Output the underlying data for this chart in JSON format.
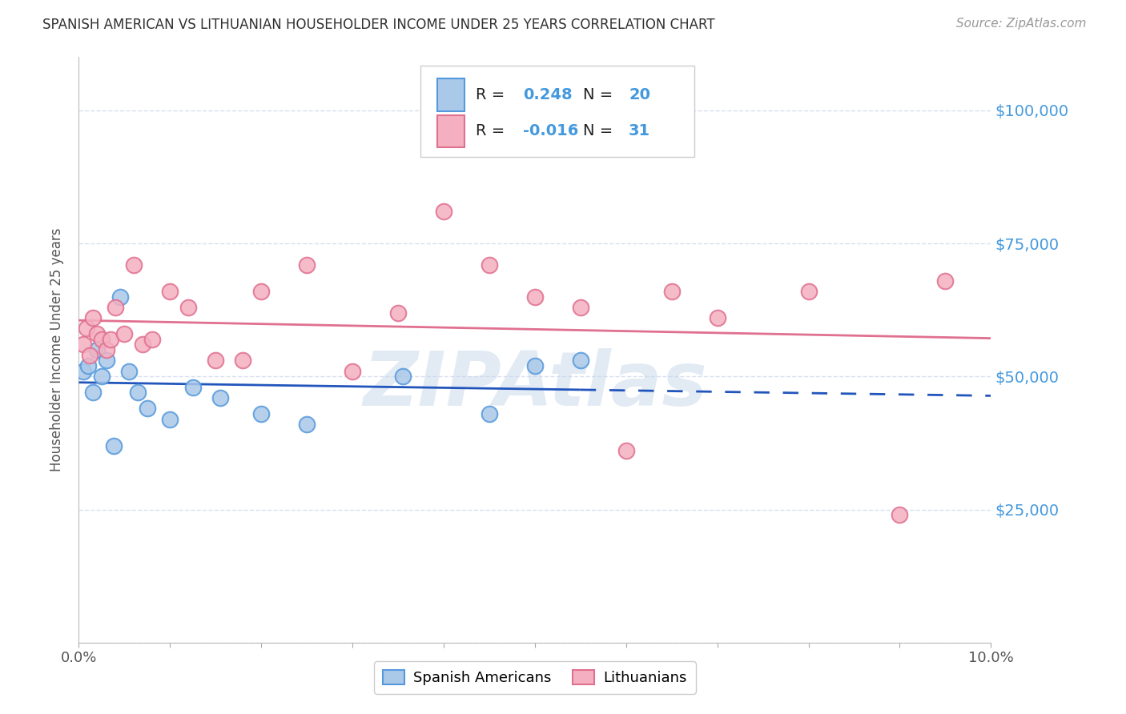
{
  "title": "SPANISH AMERICAN VS LITHUANIAN HOUSEHOLDER INCOME UNDER 25 YEARS CORRELATION CHART",
  "source": "Source: ZipAtlas.com",
  "ylabel": "Householder Income Under 25 years",
  "watermark": "ZIPAtlas",
  "xmin": 0.0,
  "xmax": 10.0,
  "ymin": 0,
  "ymax": 110000,
  "yticks": [
    0,
    25000,
    50000,
    75000,
    100000
  ],
  "ytick_labels": [
    "",
    "$25,000",
    "$50,000",
    "$75,000",
    "$100,000"
  ],
  "xticks": [
    0.0,
    1.0,
    2.0,
    3.0,
    4.0,
    5.0,
    6.0,
    7.0,
    8.0,
    9.0,
    10.0
  ],
  "xtick_end_labels": [
    "0.0%",
    "10.0%"
  ],
  "spanish_americans": {
    "x": [
      0.05,
      0.1,
      0.15,
      0.2,
      0.25,
      0.3,
      0.38,
      0.45,
      0.55,
      0.65,
      0.75,
      1.0,
      1.25,
      1.55,
      2.0,
      2.5,
      3.55,
      4.5,
      5.0,
      5.5
    ],
    "y": [
      51000,
      52000,
      47000,
      55000,
      50000,
      53000,
      37000,
      65000,
      51000,
      47000,
      44000,
      42000,
      48000,
      46000,
      43000,
      41000,
      50000,
      43000,
      52000,
      53000
    ],
    "fill_color": "#aac8e8",
    "edge_color": "#5599dd",
    "R": 0.248,
    "N": 20,
    "line_color": "#2255bb"
  },
  "lithuanians": {
    "x": [
      0.05,
      0.08,
      0.12,
      0.15,
      0.2,
      0.25,
      0.3,
      0.35,
      0.4,
      0.5,
      0.6,
      0.7,
      0.8,
      1.0,
      1.2,
      1.5,
      1.8,
      2.0,
      2.5,
      3.0,
      3.5,
      4.0,
      4.5,
      5.0,
      5.5,
      6.0,
      6.5,
      7.0,
      8.0,
      9.0,
      9.5
    ],
    "y": [
      56000,
      59000,
      54000,
      61000,
      58000,
      57000,
      55000,
      57000,
      63000,
      58000,
      71000,
      56000,
      57000,
      66000,
      63000,
      53000,
      53000,
      66000,
      71000,
      51000,
      62000,
      81000,
      71000,
      65000,
      63000,
      36000,
      66000,
      61000,
      66000,
      24000,
      68000
    ],
    "fill_color": "#f4b0c0",
    "edge_color": "#e07090",
    "R": -0.016,
    "N": 31,
    "line_color": "#e07090"
  },
  "grid_color": "#d8dff0",
  "bg_color": "#ffffff",
  "title_color": "#303030",
  "source_color": "#999999",
  "axis_blue": "#4499dd",
  "ylabel_color": "#555555",
  "watermark_color": "#c0d4e8"
}
